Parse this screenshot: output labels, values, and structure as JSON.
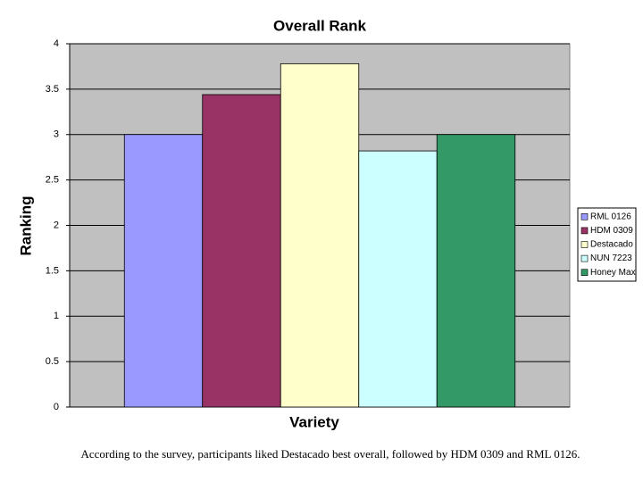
{
  "chart_data": {
    "type": "bar",
    "title": "Overall Rank",
    "x_label": "Variety",
    "y_label": "Ranking",
    "categories": [
      null
    ],
    "series": [
      {
        "name": "RML 0126",
        "color": "#9999ff",
        "values": [
          3.0
        ]
      },
      {
        "name": "HDM 0309",
        "color": "#993366",
        "values": [
          3.44
        ]
      },
      {
        "name": "Destacado",
        "color": "#ffffcc",
        "values": [
          3.78
        ]
      },
      {
        "name": "NUN 7223",
        "color": "#ccffff",
        "values": [
          2.82
        ]
      },
      {
        "name": "Honey Max",
        "color": "#339966",
        "values": [
          3.0
        ]
      }
    ],
    "ylim": [
      0,
      4
    ],
    "yticks": [
      0,
      0.5,
      1,
      1.5,
      2,
      2.5,
      3,
      3.5,
      4
    ],
    "grid": true,
    "plot_background": "#c0c0c0",
    "legend": "right",
    "caption": "According to the survey, participants liked Destacado best overall, followed by HDM 0309 and RML 0126."
  }
}
